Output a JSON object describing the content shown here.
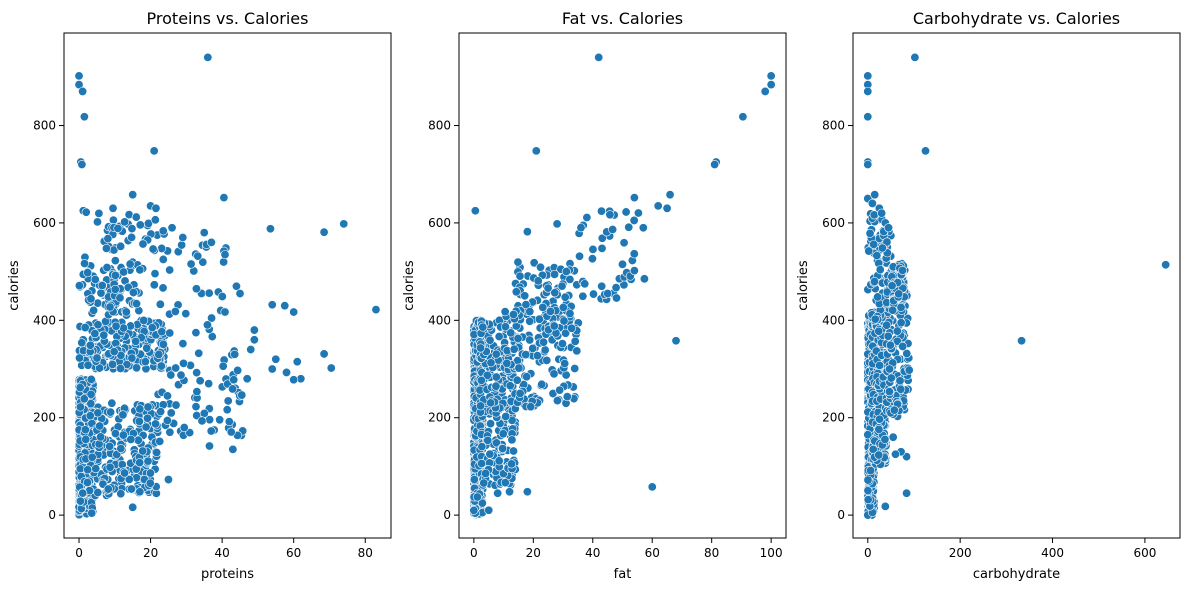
{
  "style": {
    "point_color": "#1f77b4",
    "point_edge": "#ffffff",
    "axes_color": "#000000",
    "background": "#ffffff"
  },
  "chart_data": [
    {
      "type": "scatter",
      "title": "Proteins vs. Calories",
      "xlabel": "proteins",
      "ylabel": "calories",
      "xlim": [
        -4.2,
        87.2
      ],
      "ylim": [
        -47,
        990
      ],
      "xticks": [
        0,
        20,
        40,
        60,
        80
      ],
      "yticks": [
        0,
        200,
        400,
        600,
        800
      ],
      "grid": false,
      "outliers": [
        {
          "x": 0,
          "y": 902
        },
        {
          "x": 0,
          "y": 884
        },
        {
          "x": 1,
          "y": 870
        },
        {
          "x": 1.5,
          "y": 818
        },
        {
          "x": 0.5,
          "y": 725
        },
        {
          "x": 0.8,
          "y": 720
        },
        {
          "x": 36,
          "y": 940
        },
        {
          "x": 21,
          "y": 748
        },
        {
          "x": 83,
          "y": 422
        },
        {
          "x": 74,
          "y": 598
        },
        {
          "x": 68.5,
          "y": 581
        },
        {
          "x": 68.5,
          "y": 331
        },
        {
          "x": 70.5,
          "y": 302
        },
        {
          "x": 53.5,
          "y": 588
        },
        {
          "x": 54,
          "y": 432
        },
        {
          "x": 57.5,
          "y": 430
        },
        {
          "x": 60,
          "y": 417
        },
        {
          "x": 61,
          "y": 315
        },
        {
          "x": 62,
          "y": 280
        },
        {
          "x": 60,
          "y": 278
        },
        {
          "x": 58,
          "y": 293
        },
        {
          "x": 55,
          "y": 320
        },
        {
          "x": 54,
          "y": 300
        },
        {
          "x": 49,
          "y": 380
        },
        {
          "x": 49,
          "y": 360
        },
        {
          "x": 48,
          "y": 340
        },
        {
          "x": 47,
          "y": 280
        },
        {
          "x": 44,
          "y": 470
        },
        {
          "x": 45,
          "y": 455
        },
        {
          "x": 43,
          "y": 135
        },
        {
          "x": 42,
          "y": 192
        },
        {
          "x": 40.5,
          "y": 652
        },
        {
          "x": 40.5,
          "y": 542
        },
        {
          "x": 40.8,
          "y": 535
        },
        {
          "x": 15,
          "y": 658
        },
        {
          "x": 15,
          "y": 16
        },
        {
          "x": 17,
          "y": 48
        },
        {
          "x": 25,
          "y": 73
        },
        {
          "x": 1.2,
          "y": 625
        },
        {
          "x": 2,
          "y": 622
        },
        {
          "x": 9.5,
          "y": 630
        },
        {
          "x": 14,
          "y": 617
        },
        {
          "x": 16,
          "y": 612
        },
        {
          "x": 20,
          "y": 635
        },
        {
          "x": 21.5,
          "y": 630
        },
        {
          "x": 26,
          "y": 590
        },
        {
          "x": 29,
          "y": 570
        },
        {
          "x": 37,
          "y": 560
        },
        {
          "x": 35,
          "y": 580
        }
      ],
      "clusters": [
        {
          "seed": 11,
          "count": 480,
          "x": [
            0,
            4
          ],
          "y": [
            0,
            280
          ],
          "skew": 2.0
        },
        {
          "seed": 12,
          "count": 260,
          "x": [
            0,
            22
          ],
          "y": [
            40,
            230
          ],
          "skew": 1.0
        },
        {
          "seed": 13,
          "count": 210,
          "x": [
            0,
            24
          ],
          "y": [
            300,
            400
          ],
          "skew": 1.0
        },
        {
          "seed": 14,
          "count": 90,
          "x": [
            0,
            18
          ],
          "y": [
            410,
            530
          ],
          "skew": 1.0
        },
        {
          "seed": 15,
          "count": 70,
          "x": [
            22,
            46
          ],
          "y": [
            140,
            340
          ],
          "skew": 1.0
        },
        {
          "seed": 16,
          "count": 40,
          "x": [
            20,
            42
          ],
          "y": [
            350,
            560
          ],
          "skew": 1.0
        },
        {
          "seed": 17,
          "count": 40,
          "x": [
            5,
            24
          ],
          "y": [
            540,
            620
          ],
          "skew": 1.0
        }
      ]
    },
    {
      "type": "scatter",
      "title": "Fat vs. Calories",
      "xlabel": "fat",
      "ylabel": "calories",
      "xlim": [
        -5,
        105
      ],
      "ylim": [
        -47,
        990
      ],
      "xticks": [
        0,
        20,
        40,
        60,
        80,
        100
      ],
      "yticks": [
        0,
        200,
        400,
        600,
        800
      ],
      "grid": false,
      "outliers": [
        {
          "x": 42,
          "y": 940
        },
        {
          "x": 21,
          "y": 748
        },
        {
          "x": 100,
          "y": 902
        },
        {
          "x": 100,
          "y": 884
        },
        {
          "x": 98,
          "y": 870
        },
        {
          "x": 90.5,
          "y": 818
        },
        {
          "x": 81.5,
          "y": 725
        },
        {
          "x": 81,
          "y": 720
        },
        {
          "x": 0.5,
          "y": 625
        },
        {
          "x": 68,
          "y": 358
        },
        {
          "x": 60,
          "y": 58
        },
        {
          "x": 18,
          "y": 48
        },
        {
          "x": 12,
          "y": 48
        },
        {
          "x": 8,
          "y": 45
        },
        {
          "x": 5,
          "y": 10
        },
        {
          "x": 66,
          "y": 658
        },
        {
          "x": 65,
          "y": 630
        },
        {
          "x": 62,
          "y": 635
        },
        {
          "x": 54,
          "y": 652
        },
        {
          "x": 54,
          "y": 502
        },
        {
          "x": 50,
          "y": 515
        },
        {
          "x": 18,
          "y": 582
        },
        {
          "x": 28,
          "y": 598
        },
        {
          "x": 57,
          "y": 590
        },
        {
          "x": 44,
          "y": 453
        },
        {
          "x": 45,
          "y": 455
        },
        {
          "x": 43,
          "y": 470
        }
      ],
      "clusters": [
        {
          "seed": 21,
          "count": 560,
          "x": [
            0,
            3
          ],
          "y": [
            0,
            400
          ],
          "skew": 1.6
        },
        {
          "seed": 22,
          "count": 280,
          "x": [
            2,
            14
          ],
          "y": [
            60,
            400
          ],
          "skew": 1.0
        },
        {
          "seed": 23,
          "count": 160,
          "x": [
            14,
            34
          ],
          "y": [
            220,
            520
          ],
          "skew": 1.0
        },
        {
          "seed": 24,
          "count": 40,
          "x": [
            34,
            58
          ],
          "y": [
            440,
            630
          ],
          "skew": 1.0
        },
        {
          "seed": 25,
          "count": 60,
          "x": [
            10,
            36
          ],
          "y": [
            300,
            420
          ],
          "skew": 1.0
        }
      ]
    },
    {
      "type": "scatter",
      "title": "Carbohydrate vs. Calories",
      "xlabel": "carbohydrate",
      "ylabel": "calories",
      "xlim": [
        -32,
        676
      ],
      "ylim": [
        -47,
        990
      ],
      "xticks": [
        0,
        200,
        400,
        600
      ],
      "yticks": [
        0,
        200,
        400,
        600,
        800
      ],
      "grid": false,
      "outliers": [
        {
          "x": 645,
          "y": 514
        },
        {
          "x": 333,
          "y": 358
        },
        {
          "x": 102,
          "y": 940
        },
        {
          "x": 125,
          "y": 748
        },
        {
          "x": 0,
          "y": 902
        },
        {
          "x": 0,
          "y": 884
        },
        {
          "x": 0,
          "y": 870
        },
        {
          "x": 0,
          "y": 818
        },
        {
          "x": 0,
          "y": 725
        },
        {
          "x": 0,
          "y": 720
        },
        {
          "x": 0,
          "y": 650
        },
        {
          "x": 10,
          "y": 640
        },
        {
          "x": 15,
          "y": 658
        },
        {
          "x": 84,
          "y": 45
        },
        {
          "x": 38,
          "y": 18
        },
        {
          "x": 84,
          "y": 120
        },
        {
          "x": 72,
          "y": 130
        },
        {
          "x": 60,
          "y": 125
        },
        {
          "x": 55,
          "y": 160
        },
        {
          "x": 25,
          "y": 630
        },
        {
          "x": 30,
          "y": 620
        },
        {
          "x": 38,
          "y": 600
        },
        {
          "x": 45,
          "y": 590
        }
      ],
      "clusters": [
        {
          "seed": 31,
          "count": 520,
          "x": [
            0,
            14
          ],
          "y": [
            0,
            400
          ],
          "skew": 1.3
        },
        {
          "seed": 32,
          "count": 260,
          "x": [
            10,
            40
          ],
          "y": [
            100,
            420
          ],
          "skew": 1.0
        },
        {
          "seed": 33,
          "count": 160,
          "x": [
            40,
            90
          ],
          "y": [
            200,
            500
          ],
          "skew": 1.0
        },
        {
          "seed": 34,
          "count": 90,
          "x": [
            0,
            50
          ],
          "y": [
            400,
            620
          ],
          "skew": 1.0
        },
        {
          "seed": 35,
          "count": 60,
          "x": [
            50,
            80
          ],
          "y": [
            420,
            520
          ],
          "skew": 1.0
        }
      ]
    }
  ]
}
